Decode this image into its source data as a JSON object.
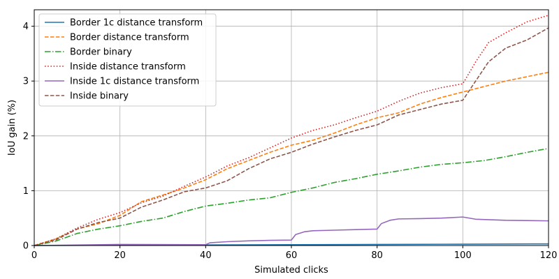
{
  "chart_data": {
    "type": "line",
    "title": "",
    "xlabel": "Simulated clicks",
    "ylabel": "IoU gain (%)",
    "xlim": [
      0,
      120
    ],
    "ylim": [
      0,
      4.3
    ],
    "xticks": [
      0,
      20,
      40,
      60,
      80,
      100,
      120
    ],
    "yticks": [
      0,
      1,
      2,
      3,
      4
    ],
    "grid": true,
    "legend_position": "top-left",
    "series": [
      {
        "name": "Border 1c distance transform",
        "color": "#1f77b4",
        "dash": "solid",
        "x": [
          0,
          20,
          40,
          60,
          80,
          100,
          120
        ],
        "y": [
          0,
          0.005,
          0.01,
          0.015,
          0.02,
          0.025,
          0.03
        ]
      },
      {
        "name": "Border distance transform",
        "color": "#ff7f0e",
        "dash": "dashed",
        "x": [
          0,
          5,
          10,
          15,
          20,
          25,
          30,
          35,
          40,
          45,
          50,
          55,
          60,
          65,
          70,
          75,
          80,
          85,
          90,
          95,
          100,
          105,
          110,
          115,
          120
        ],
        "y": [
          0,
          0.12,
          0.3,
          0.4,
          0.55,
          0.8,
          0.92,
          1.05,
          1.2,
          1.4,
          1.55,
          1.7,
          1.83,
          1.92,
          2.05,
          2.2,
          2.33,
          2.42,
          2.58,
          2.7,
          2.8,
          2.9,
          3.0,
          3.08,
          3.16
        ]
      },
      {
        "name": "Border binary",
        "color": "#2ca02c",
        "dash": "dashdot",
        "x": [
          0,
          5,
          10,
          15,
          20,
          25,
          30,
          35,
          40,
          45,
          50,
          55,
          60,
          65,
          70,
          75,
          80,
          85,
          90,
          95,
          100,
          105,
          110,
          115,
          120
        ],
        "y": [
          0,
          0.08,
          0.22,
          0.3,
          0.36,
          0.44,
          0.5,
          0.62,
          0.72,
          0.77,
          0.83,
          0.87,
          0.97,
          1.05,
          1.15,
          1.22,
          1.3,
          1.36,
          1.43,
          1.48,
          1.51,
          1.55,
          1.62,
          1.7,
          1.77
        ]
      },
      {
        "name": "Inside distance transform",
        "color": "#d62728",
        "dash": "dotted",
        "x": [
          0,
          5,
          10,
          15,
          20,
          25,
          30,
          35,
          40,
          45,
          50,
          55,
          60,
          65,
          70,
          75,
          80,
          85,
          90,
          95,
          100,
          103,
          106,
          110,
          115,
          120
        ],
        "y": [
          0,
          0.12,
          0.32,
          0.48,
          0.6,
          0.78,
          0.9,
          1.08,
          1.25,
          1.45,
          1.6,
          1.78,
          1.96,
          2.1,
          2.2,
          2.33,
          2.45,
          2.63,
          2.78,
          2.88,
          2.95,
          3.35,
          3.7,
          3.88,
          4.08,
          4.2
        ]
      },
      {
        "name": "Inside 1c distance transform",
        "color": "#9467bd",
        "dash": "solid",
        "x": [
          0,
          20,
          40,
          41,
          45,
          50,
          55,
          60,
          61,
          63,
          65,
          70,
          75,
          80,
          81,
          83,
          85,
          90,
          95,
          100,
          103,
          110,
          120
        ],
        "y": [
          0,
          0.02,
          0.015,
          0.05,
          0.07,
          0.085,
          0.095,
          0.1,
          0.2,
          0.25,
          0.27,
          0.28,
          0.29,
          0.3,
          0.4,
          0.46,
          0.485,
          0.49,
          0.5,
          0.52,
          0.48,
          0.46,
          0.45
        ]
      },
      {
        "name": "Inside binary",
        "color": "#8c564b",
        "dash": "dashed",
        "x": [
          0,
          5,
          10,
          15,
          20,
          25,
          30,
          35,
          40,
          45,
          50,
          55,
          60,
          65,
          70,
          75,
          80,
          85,
          90,
          95,
          100,
          103,
          106,
          110,
          115,
          120
        ],
        "y": [
          0,
          0.1,
          0.3,
          0.42,
          0.5,
          0.7,
          0.83,
          0.98,
          1.05,
          1.18,
          1.4,
          1.58,
          1.7,
          1.85,
          1.98,
          2.1,
          2.2,
          2.38,
          2.48,
          2.58,
          2.65,
          3.0,
          3.35,
          3.6,
          3.75,
          3.97
        ]
      }
    ]
  }
}
